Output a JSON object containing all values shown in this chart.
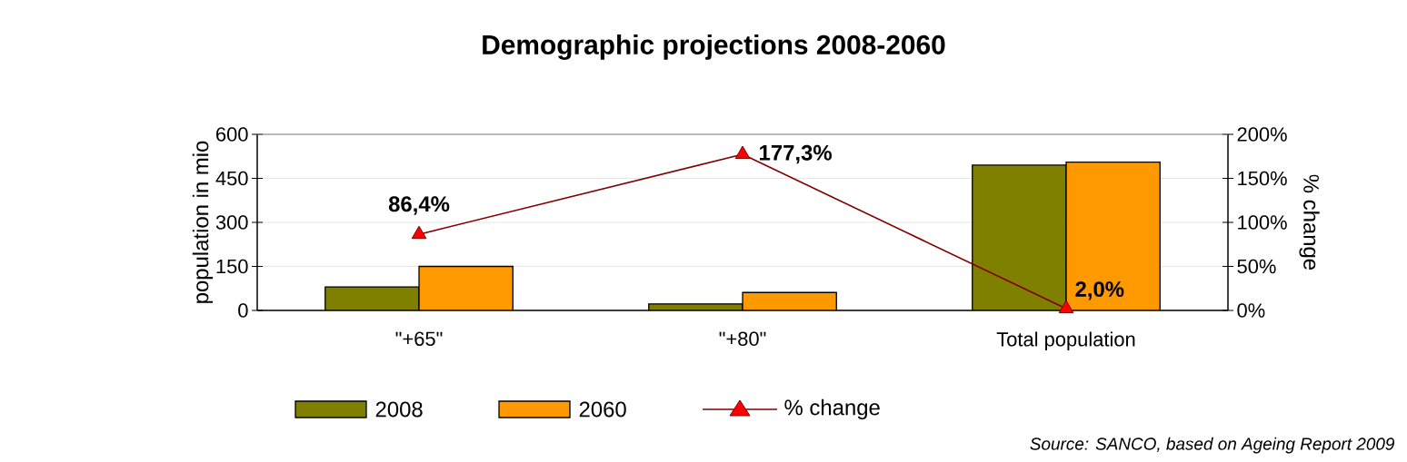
{
  "chart_data": {
    "type": "bar",
    "title": "Demographic projections  2008-2060",
    "ylabel": "population in mio",
    "y2label": "% change",
    "categories": [
      "\"+65\"",
      "\"+80\"",
      "Total population"
    ],
    "series": [
      {
        "name": "2008",
        "color": "#808000",
        "values": [
          80,
          22,
          495
        ]
      },
      {
        "name": "2060",
        "color": "#ff9900",
        "values": [
          150,
          61,
          505
        ]
      },
      {
        "name": "% change",
        "type": "line",
        "axis": "y2",
        "color": "#800000",
        "values": [
          86.4,
          177.3,
          2.0
        ],
        "value_labels": [
          "86,4%",
          "177,3%",
          "2,0%"
        ]
      }
    ],
    "ylim": [
      0,
      600
    ],
    "yticks": [
      0,
      150,
      300,
      450,
      600
    ],
    "y2lim": [
      0,
      200
    ],
    "y2ticks": [
      {
        "value": 0,
        "label": "0%"
      },
      {
        "value": 50,
        "label": "50%"
      },
      {
        "value": 100,
        "label": "100%"
      },
      {
        "value": 150,
        "label": "150%"
      },
      {
        "value": 200,
        "label": "200%"
      }
    ],
    "grid": "y",
    "legend": "bottom",
    "marker": "triangle",
    "annotations": [
      "Source: SANCO, based on Ageing Report 2009"
    ]
  }
}
